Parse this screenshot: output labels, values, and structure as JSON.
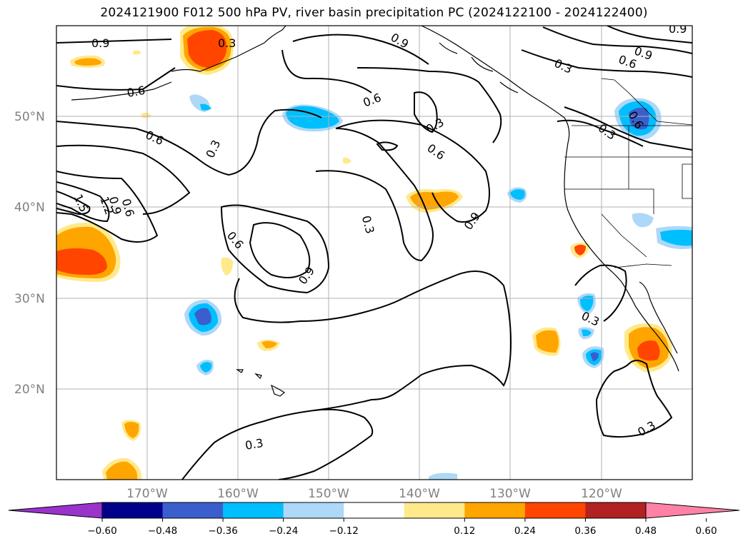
{
  "title": "2024121900 F012 500 hPa PV, river basin precipitation PC (2024122100 - 2024122400)",
  "map": {
    "extent": {
      "lon": [
        -180,
        -110
      ],
      "lat": [
        10,
        60
      ]
    },
    "lat_ticks": [
      {
        "value": 50,
        "label": "50°N"
      },
      {
        "value": 40,
        "label": "40°N"
      },
      {
        "value": 30,
        "label": "30°N"
      },
      {
        "value": 20,
        "label": "20°N"
      }
    ],
    "lon_ticks": [
      {
        "value": -170,
        "label": "170°W"
      },
      {
        "value": -160,
        "label": "160°W"
      },
      {
        "value": -150,
        "label": "150°W"
      },
      {
        "value": -140,
        "label": "140°W"
      },
      {
        "value": -130,
        "label": "130°W"
      },
      {
        "value": -120,
        "label": "120°W"
      }
    ],
    "contour_labels": [
      "0.9",
      "0.6",
      "0.3",
      "1.5",
      "1.2"
    ]
  },
  "colorbar": {
    "colors": [
      "#9933cc",
      "#00008b",
      "#3a5fcd",
      "#00bfff",
      "#add8f7",
      "#ffffff",
      "#ffe98a",
      "#ffa500",
      "#ff4500",
      "#b22222",
      "#ff82a6"
    ],
    "ticks": [
      "−0.60",
      "−0.48",
      "−0.36",
      "−0.24",
      "−0.12",
      "0.12",
      "0.24",
      "0.36",
      "0.48",
      "0.60"
    ]
  }
}
